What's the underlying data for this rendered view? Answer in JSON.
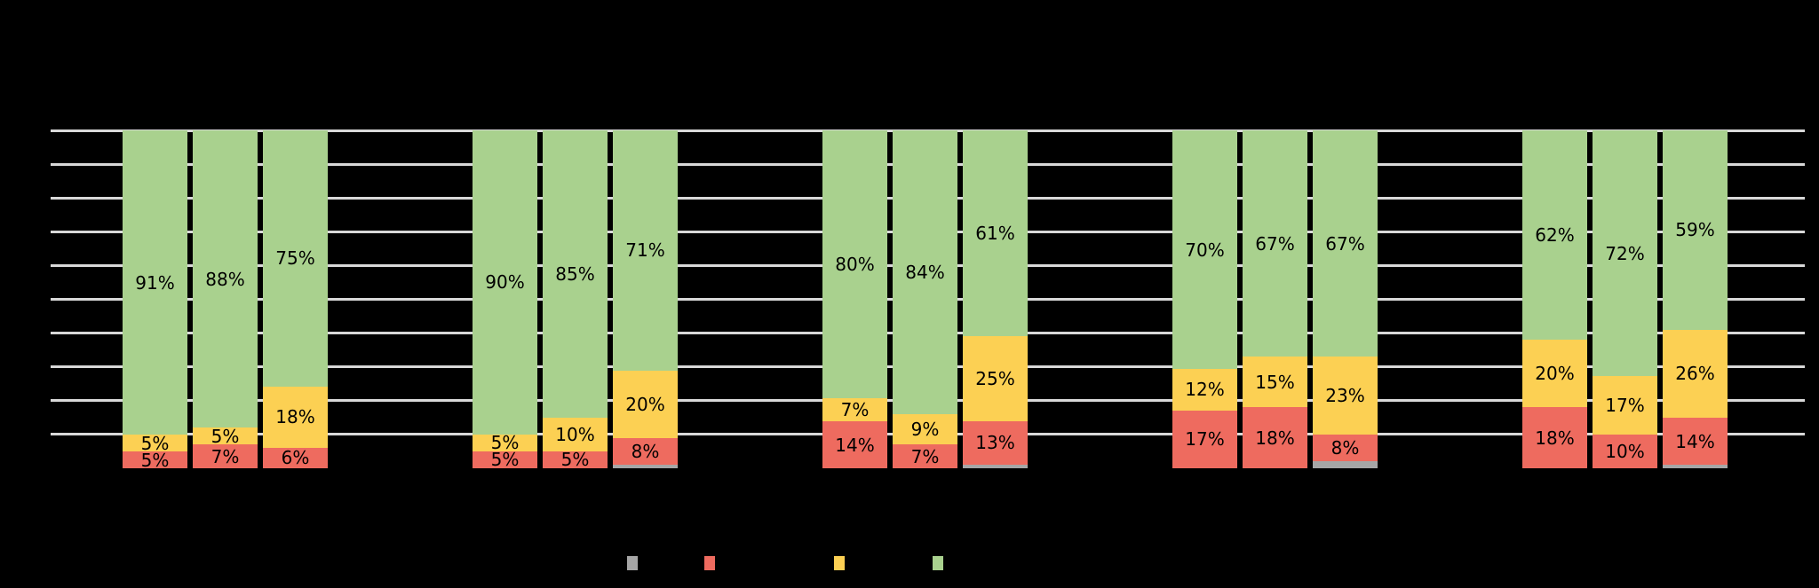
{
  "canvas": {
    "background": "#000000"
  },
  "chart_data": {
    "type": "bar",
    "stacked": true,
    "orientation": "vertical",
    "value_format": "percent",
    "ylim": [
      0,
      100
    ],
    "grid": true,
    "gridlines_percent": [
      10,
      20,
      30,
      40,
      50,
      60,
      70,
      80,
      90,
      100
    ],
    "gridline_color": "#D8D8D8",
    "label_color": "#000000",
    "series_order_bottom_to_top": [
      "gray",
      "red",
      "yellow",
      "green"
    ],
    "colors": {
      "gray": "#A6A6A6",
      "red": "#EE6B5F",
      "yellow": "#FCD053",
      "green": "#A9D18E"
    },
    "labeled_series": [
      "red",
      "yellow",
      "green"
    ],
    "groups": [
      {
        "bars": [
          {
            "gray": 0,
            "red": 5,
            "yellow": 5,
            "green": 91
          },
          {
            "gray": 0,
            "red": 7,
            "yellow": 5,
            "green": 88
          },
          {
            "gray": 0,
            "red": 6,
            "yellow": 18,
            "green": 75
          }
        ]
      },
      {
        "bars": [
          {
            "gray": 0,
            "red": 5,
            "yellow": 5,
            "green": 90
          },
          {
            "gray": 0,
            "red": 5,
            "yellow": 10,
            "green": 85
          },
          {
            "gray": 1,
            "red": 8,
            "yellow": 20,
            "green": 71
          }
        ]
      },
      {
        "bars": [
          {
            "gray": 0,
            "red": 14,
            "yellow": 7,
            "green": 80
          },
          {
            "gray": 0,
            "red": 7,
            "yellow": 9,
            "green": 84
          },
          {
            "gray": 1,
            "red": 13,
            "yellow": 25,
            "green": 61
          }
        ]
      },
      {
        "bars": [
          {
            "gray": 0,
            "red": 17,
            "yellow": 12,
            "green": 70
          },
          {
            "gray": 0,
            "red": 18,
            "yellow": 15,
            "green": 67
          },
          {
            "gray": 2,
            "red": 8,
            "yellow": 23,
            "green": 67
          }
        ]
      },
      {
        "bars": [
          {
            "gray": 0,
            "red": 18,
            "yellow": 20,
            "green": 62
          },
          {
            "gray": 0,
            "red": 10,
            "yellow": 17,
            "green": 72
          },
          {
            "gray": 1,
            "red": 14,
            "yellow": 26,
            "green": 59
          }
        ]
      }
    ],
    "legend": {
      "position": "bottom",
      "swatch_colors": [
        "#A6A6A6",
        "#EE6B5F",
        "#FCD053",
        "#A9D18E"
      ],
      "swatch_names": [
        "gray",
        "red",
        "yellow",
        "green"
      ]
    }
  }
}
